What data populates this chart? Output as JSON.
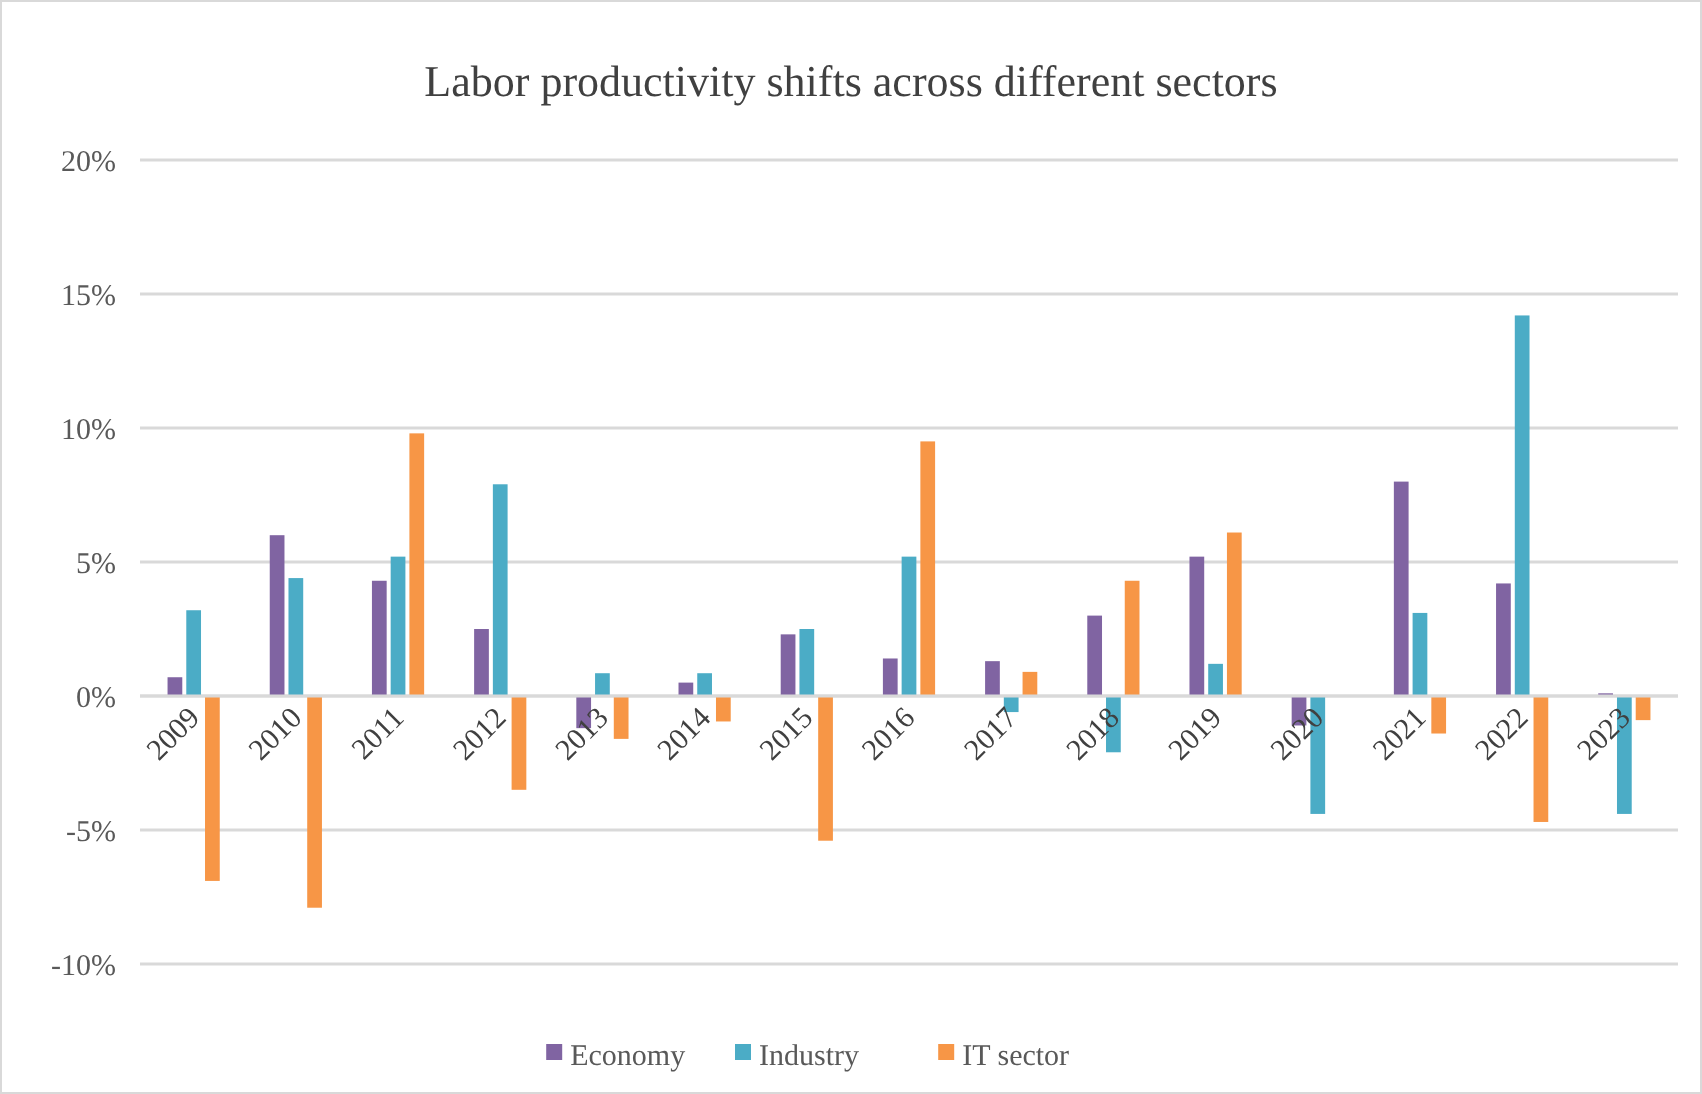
{
  "chart_data": {
    "type": "bar",
    "title": "Labor productivity shifts across different sectors",
    "categories": [
      "2009",
      "2010",
      "2011",
      "2012",
      "2013",
      "2014",
      "2015",
      "2016",
      "2017",
      "2018",
      "2019",
      "2020",
      "2021",
      "2022",
      "2023"
    ],
    "series": [
      {
        "name": "Economy",
        "color": "#8064a2",
        "values": [
          0.7,
          6.0,
          4.3,
          2.5,
          -1.2,
          0.5,
          2.3,
          1.4,
          1.3,
          3.0,
          5.2,
          -1.1,
          8.0,
          4.2,
          0.1
        ]
      },
      {
        "name": "Industry",
        "color": "#4bacc6",
        "values": [
          3.2,
          4.4,
          5.2,
          7.9,
          0.85,
          0.85,
          2.5,
          5.2,
          -0.6,
          -2.1,
          1.2,
          -4.4,
          3.1,
          14.2,
          -4.4
        ]
      },
      {
        "name": "IT sector",
        "color": "#f79646",
        "values": [
          -6.9,
          -7.9,
          9.8,
          -3.5,
          -1.6,
          -0.95,
          -5.4,
          9.5,
          0.9,
          4.3,
          6.1,
          0,
          -1.4,
          -4.7,
          -0.9
        ]
      }
    ],
    "ylim": [
      -10,
      20
    ],
    "yticks": [
      {
        "value": -10,
        "label": "-10%"
      },
      {
        "value": -5,
        "label": "-5%"
      },
      {
        "value": 0,
        "label": "0%"
      },
      {
        "value": 5,
        "label": "5%"
      },
      {
        "value": 10,
        "label": "10%"
      },
      {
        "value": 15,
        "label": "15%"
      },
      {
        "value": 20,
        "label": "20%"
      }
    ],
    "grid": "y",
    "legend": "bottom"
  }
}
